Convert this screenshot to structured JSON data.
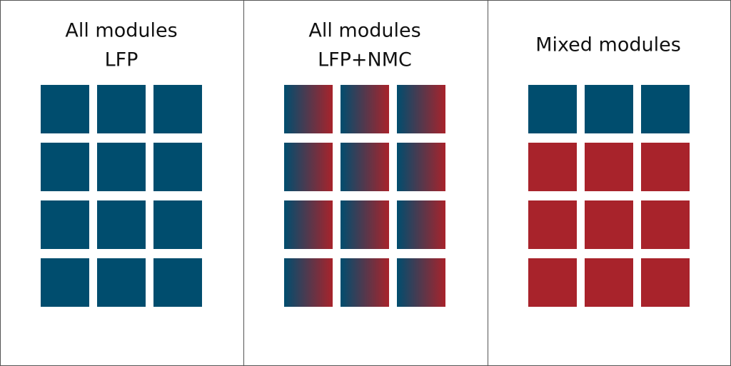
{
  "panels": [
    {
      "title": [
        "All modules",
        "LFP"
      ]
    },
    {
      "title": [
        "All modules",
        "LFP+NMC"
      ]
    },
    {
      "title": [
        "Mixed modules"
      ]
    }
  ]
}
